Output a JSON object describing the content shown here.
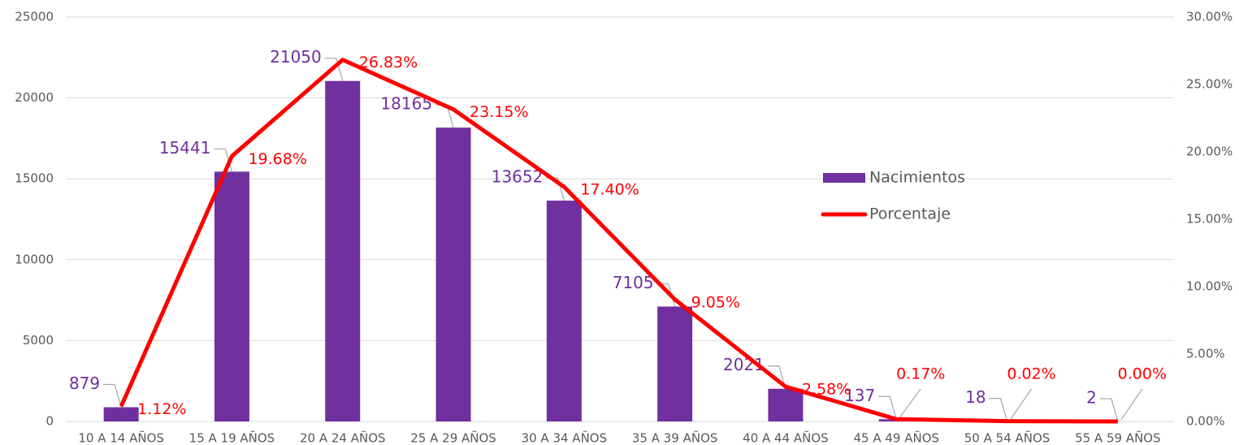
{
  "chart_data": {
    "type": "bar_line",
    "categories": [
      "10 A 14 AÑOS",
      "15 A 19 AÑOS",
      "20 A 24 AÑOS",
      "25 A 29 AÑOS",
      "30 A 34 AÑOS",
      "35 A 39 AÑOS",
      "40 A 44 AÑOS",
      "45 A 49 AÑOS",
      "50 A 54 AÑOS",
      "55 A 59 AÑOS"
    ],
    "series": [
      {
        "name": "Nacimientos",
        "type": "bar",
        "color": "#7030a0",
        "values": [
          879,
          15441,
          21050,
          18165,
          13652,
          7105,
          2021,
          137,
          18,
          2
        ]
      },
      {
        "name": "Porcentaje",
        "type": "line",
        "axis": "y2",
        "color": "#ff0000",
        "values": [
          1.12,
          19.68,
          26.83,
          23.15,
          17.4,
          9.05,
          2.58,
          0.17,
          0.02,
          0.0
        ],
        "value_labels": [
          "1.12%",
          "19.68%",
          "26.83%",
          "23.15%",
          "17.40%",
          "9.05%",
          "2.58%",
          "0.17%",
          "0.02%",
          "0.00%"
        ]
      }
    ],
    "ylim": [
      0,
      25000
    ],
    "yticks": [
      0,
      5000,
      10000,
      15000,
      20000,
      25000
    ],
    "y2lim": [
      0,
      30
    ],
    "y2ticks": [
      {
        "value": 0,
        "label": "0.00%"
      },
      {
        "value": 5,
        "label": "5.00%"
      },
      {
        "value": 10,
        "label": "10.00%"
      },
      {
        "value": 15,
        "label": "15.00%"
      },
      {
        "value": 20,
        "label": "20.00%"
      },
      {
        "value": 25,
        "label": "25.00%"
      },
      {
        "value": 30,
        "label": "30.00%"
      }
    ],
    "grid": true,
    "legend": "right"
  }
}
